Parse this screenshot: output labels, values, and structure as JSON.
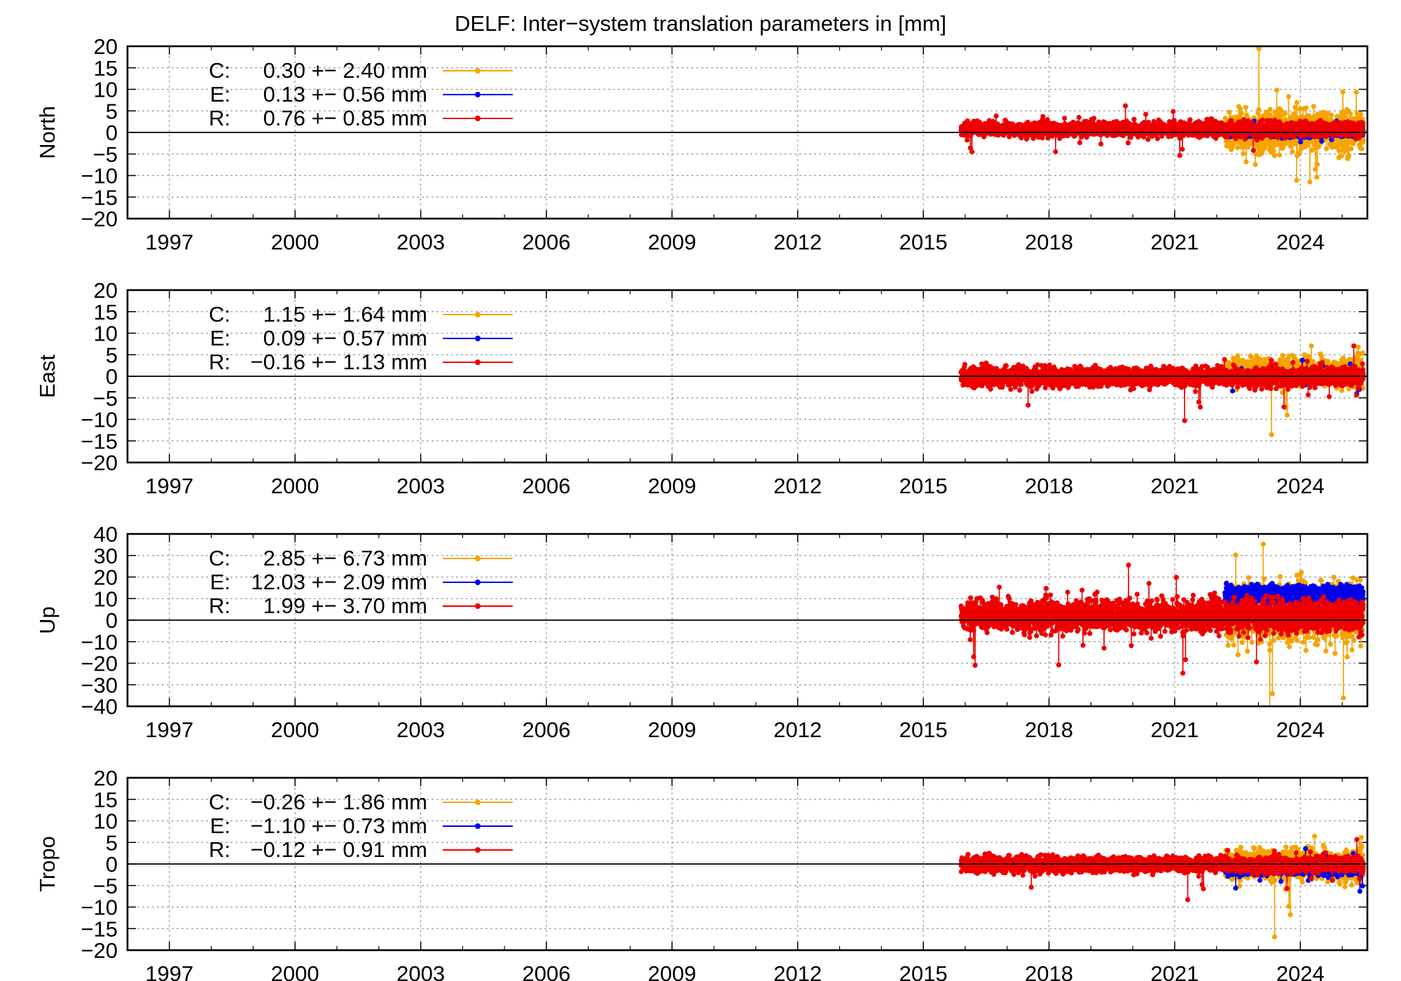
{
  "title": "DELF: Inter−system translation parameters in [mm]",
  "colors": {
    "C": "#f5a400",
    "E": "#0000ee",
    "R": "#ee0000",
    "axis": "#000000",
    "grid": "#999999"
  },
  "chart_data": [
    {
      "type": "scatter",
      "ylabel": "North",
      "x_ticks": [
        "1997",
        "2000",
        "2003",
        "2006",
        "2009",
        "2012",
        "2015",
        "2018",
        "2021",
        "2024"
      ],
      "y_ticks": [
        "20",
        "15",
        "10",
        "5",
        "0",
        "−5",
        "−10",
        "−15",
        "−20"
      ],
      "xlim": [
        1996.0,
        2025.6
      ],
      "ylim": [
        -20,
        20
      ],
      "grid": true,
      "legend_position": "top-left",
      "series": [
        {
          "name": "C",
          "label": "C:",
          "stats": "0.30 +− 2.40 mm",
          "mean": 0.3,
          "std": 2.4,
          "start": 2022.2,
          "end": 2025.5
        },
        {
          "name": "E",
          "label": "E:",
          "stats": "0.13 +− 0.56 mm",
          "mean": 0.13,
          "std": 0.56,
          "start": 2022.2,
          "end": 2025.5
        },
        {
          "name": "R",
          "label": "R:",
          "stats": "0.76 +− 0.85 mm",
          "mean": 0.76,
          "std": 0.85,
          "start": 2015.9,
          "end": 2025.5
        }
      ]
    },
    {
      "type": "scatter",
      "ylabel": "East",
      "x_ticks": [
        "1997",
        "2000",
        "2003",
        "2006",
        "2009",
        "2012",
        "2015",
        "2018",
        "2021",
        "2024"
      ],
      "y_ticks": [
        "20",
        "15",
        "10",
        "5",
        "0",
        "−5",
        "−10",
        "−15",
        "−20"
      ],
      "xlim": [
        1996.0,
        2025.6
      ],
      "ylim": [
        -20,
        20
      ],
      "grid": true,
      "legend_position": "top-left",
      "series": [
        {
          "name": "C",
          "label": "C:",
          "stats": "1.15 +− 1.64 mm",
          "mean": 1.15,
          "std": 1.64,
          "start": 2022.2,
          "end": 2025.5
        },
        {
          "name": "E",
          "label": "E:",
          "stats": "0.09 +− 0.57 mm",
          "mean": 0.09,
          "std": 0.57,
          "start": 2022.2,
          "end": 2025.5
        },
        {
          "name": "R",
          "label": "R:",
          "stats": "−0.16 +− 1.13 mm",
          "mean": -0.16,
          "std": 1.13,
          "start": 2015.9,
          "end": 2025.5
        }
      ]
    },
    {
      "type": "scatter",
      "ylabel": "Up",
      "x_ticks": [
        "1997",
        "2000",
        "2003",
        "2006",
        "2009",
        "2012",
        "2015",
        "2018",
        "2021",
        "2024"
      ],
      "y_ticks": [
        "40",
        "30",
        "20",
        "10",
        "0",
        "−10",
        "−20",
        "−30",
        "−40"
      ],
      "xlim": [
        1996.0,
        2025.6
      ],
      "ylim": [
        -40,
        40
      ],
      "grid": true,
      "legend_position": "top-left",
      "series": [
        {
          "name": "C",
          "label": "C:",
          "stats": "2.85 +− 6.73 mm",
          "mean": 2.85,
          "std": 6.73,
          "start": 2022.2,
          "end": 2025.5
        },
        {
          "name": "E",
          "label": "E:",
          "stats": "12.03 +− 2.09 mm",
          "mean": 12.03,
          "std": 2.09,
          "start": 2022.2,
          "end": 2025.5
        },
        {
          "name": "R",
          "label": "R:",
          "stats": "1.99 +− 3.70 mm",
          "mean": 1.99,
          "std": 3.7,
          "start": 2015.9,
          "end": 2025.5
        }
      ]
    },
    {
      "type": "scatter",
      "ylabel": "Tropo",
      "x_ticks": [
        "1997",
        "2000",
        "2003",
        "2006",
        "2009",
        "2012",
        "2015",
        "2018",
        "2021",
        "2024"
      ],
      "y_ticks": [
        "20",
        "15",
        "10",
        "5",
        "0",
        "−5",
        "−10",
        "−15",
        "−20"
      ],
      "xlim": [
        1996.0,
        2025.6
      ],
      "ylim": [
        -20,
        20
      ],
      "grid": true,
      "legend_position": "top-left",
      "series": [
        {
          "name": "C",
          "label": "C:",
          "stats": "−0.26 +− 1.86 mm",
          "mean": -0.26,
          "std": 1.86,
          "start": 2022.2,
          "end": 2025.5
        },
        {
          "name": "E",
          "label": "E:",
          "stats": "−1.10 +− 0.73 mm",
          "mean": -1.1,
          "std": 0.73,
          "start": 2022.2,
          "end": 2025.5
        },
        {
          "name": "R",
          "label": "R:",
          "stats": "−0.12 +− 0.91 mm",
          "mean": -0.12,
          "std": 0.91,
          "start": 2015.9,
          "end": 2025.5
        }
      ]
    }
  ]
}
